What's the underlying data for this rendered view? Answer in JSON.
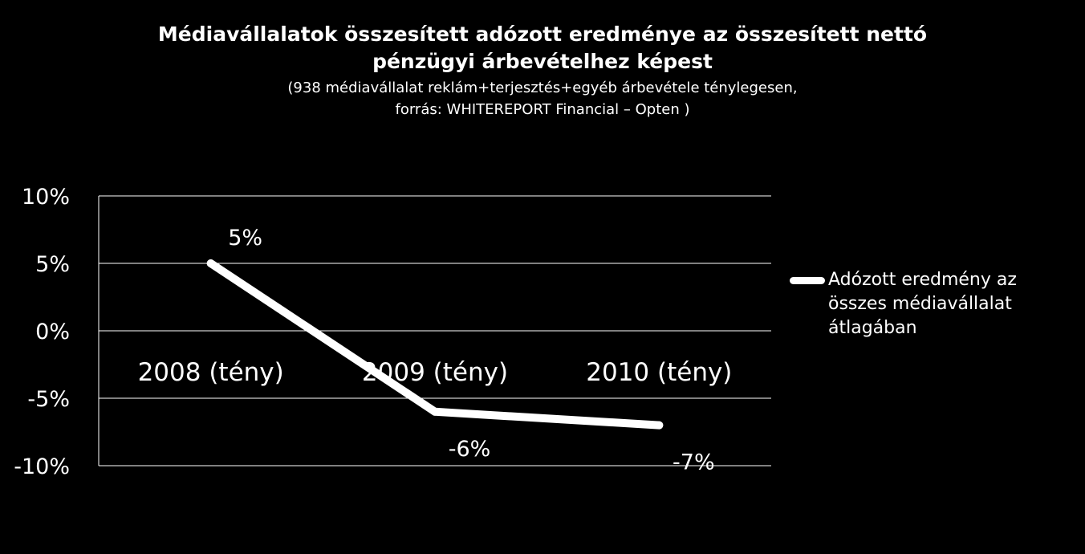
{
  "title": {
    "line1": "Médiavállalatok összesített adózott eredménye az összesített nettó",
    "line2": "pénzügyi árbevételhez képest"
  },
  "subtitle": {
    "line1": "(938 médiavállalat reklám+terjesztés+egyéb árbevétele ténylegesen,",
    "line2": "forrás: WHITEREPORT Financial – Opten )"
  },
  "colors": {
    "background": "#000000",
    "foreground": "#ffffff"
  },
  "chart_data": {
    "type": "line",
    "categories": [
      "2008 (tény)",
      "2009 (tény)",
      "2010 (tény)"
    ],
    "series": [
      {
        "name": "Adózott eredmény az összes médiavállalat átlagában",
        "values": [
          5,
          -6,
          -7
        ],
        "labels": [
          "5%",
          "-6%",
          "-7%"
        ]
      }
    ],
    "ylim": [
      -10,
      10
    ],
    "yticks": [
      10,
      5,
      0,
      -5,
      -10
    ],
    "ytick_labels": [
      "10%",
      "5%",
      "0%",
      "-5%",
      "-10%"
    ],
    "grid": true,
    "legend": "right"
  }
}
